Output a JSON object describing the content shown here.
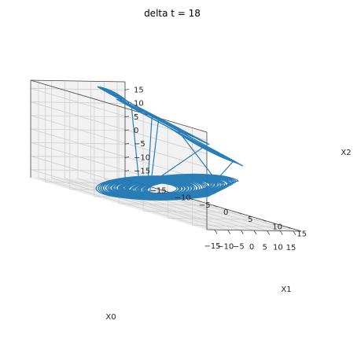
{
  "chart_data": {
    "type": "line",
    "title": "delta t = 18",
    "xlabel": "X0",
    "ylabel": "X1",
    "zlabel": "X2",
    "projection": "3d",
    "xlim": [
      -18,
      18
    ],
    "ylim": [
      -18,
      18
    ],
    "zlim": [
      -18,
      18
    ],
    "xticks": [
      -15,
      -10,
      -5,
      0,
      5,
      10,
      15
    ],
    "yticks": [
      -15,
      -10,
      -5,
      0,
      5,
      10,
      15
    ],
    "zticks": [
      -15,
      -10,
      -5,
      0,
      5,
      10,
      15
    ],
    "grid": true,
    "series": [
      {
        "color": "#1f77b4"
      }
    ]
  }
}
